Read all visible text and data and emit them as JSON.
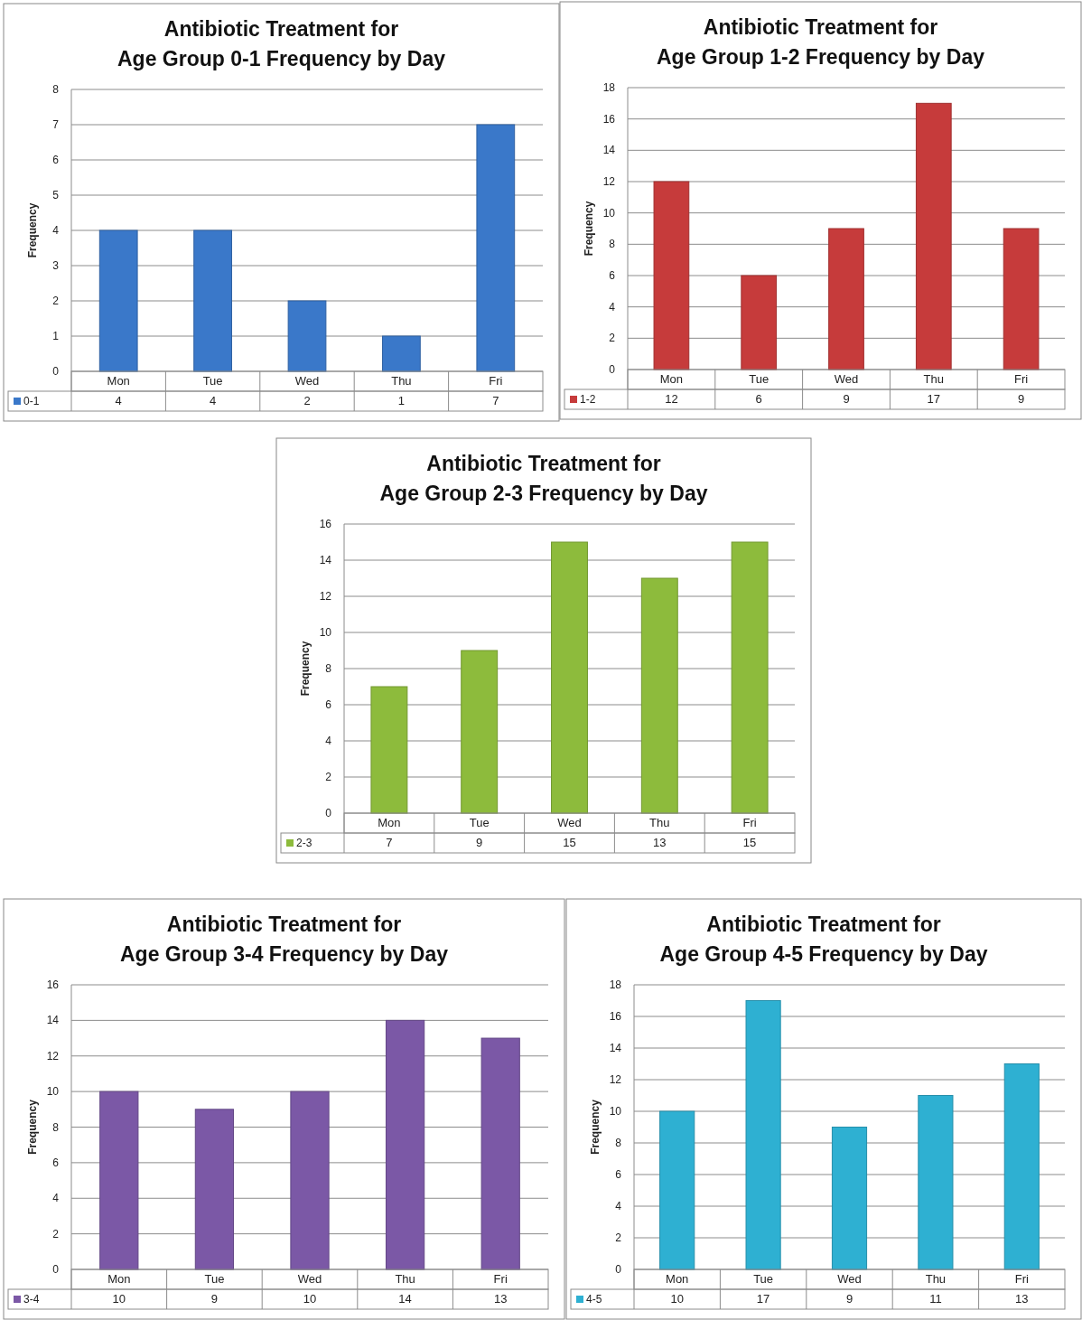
{
  "chart_data": [
    {
      "type": "bar",
      "title": "Antibiotic Treatment for\nAge Group 0-1 Frequency by Day",
      "ylabel": "Frequency",
      "categories": [
        "Mon",
        "Tue",
        "Wed",
        "Thu",
        "Fri"
      ],
      "series": [
        {
          "name": "0-1",
          "color": "#3a78c9",
          "values": [
            4,
            4,
            2,
            1,
            7
          ]
        }
      ],
      "ylim": [
        0,
        8
      ],
      "yticks": [
        0,
        1,
        2,
        3,
        4,
        5,
        6,
        7,
        8
      ],
      "grid": "y",
      "data_labels": true,
      "legend": "bottom"
    },
    {
      "type": "bar",
      "title": "Antibiotic Treatment for\nAge Group 1-2 Frequency by Day",
      "ylabel": "Frequency",
      "categories": [
        "Mon",
        "Tue",
        "Wed",
        "Thu",
        "Fri"
      ],
      "series": [
        {
          "name": "1-2",
          "color": "#c63b3b",
          "values": [
            12,
            6,
            9,
            17,
            9
          ]
        }
      ],
      "ylim": [
        0,
        18
      ],
      "yticks": [
        0,
        2,
        4,
        6,
        8,
        10,
        12,
        14,
        16,
        18
      ],
      "grid": "y",
      "data_labels": true,
      "legend": "bottom"
    },
    {
      "type": "bar",
      "title": "Antibiotic Treatment for\nAge Group 2-3 Frequency by Day",
      "ylabel": "Frequency",
      "categories": [
        "Mon",
        "Tue",
        "Wed",
        "Thu",
        "Fri"
      ],
      "series": [
        {
          "name": "2-3",
          "color": "#8dbb3c",
          "values": [
            7,
            9,
            15,
            13,
            15
          ]
        }
      ],
      "ylim": [
        0,
        16
      ],
      "yticks": [
        0,
        2,
        4,
        6,
        8,
        10,
        12,
        14,
        16
      ],
      "grid": "y",
      "data_labels": true,
      "legend": "bottom"
    },
    {
      "type": "bar",
      "title": "Antibiotic Treatment for\nAge Group 3-4 Frequency by Day",
      "ylabel": "Frequency",
      "categories": [
        "Mon",
        "Tue",
        "Wed",
        "Thu",
        "Fri"
      ],
      "series": [
        {
          "name": "3-4",
          "color": "#7b58a6",
          "values": [
            10,
            9,
            10,
            14,
            13
          ]
        }
      ],
      "ylim": [
        0,
        16
      ],
      "yticks": [
        0,
        2,
        4,
        6,
        8,
        10,
        12,
        14,
        16
      ],
      "grid": "y",
      "data_labels": true,
      "legend": "bottom"
    },
    {
      "type": "bar",
      "title": "Antibiotic Treatment for\nAge Group 4-5 Frequency by Day",
      "ylabel": "Frequency",
      "categories": [
        "Mon",
        "Tue",
        "Wed",
        "Thu",
        "Fri"
      ],
      "series": [
        {
          "name": "4-5",
          "color": "#2eb0d2",
          "values": [
            10,
            17,
            9,
            11,
            13
          ]
        }
      ],
      "ylim": [
        0,
        18
      ],
      "yticks": [
        0,
        2,
        4,
        6,
        8,
        10,
        12,
        14,
        16,
        18
      ],
      "grid": "y",
      "data_labels": true,
      "legend": "bottom"
    }
  ]
}
